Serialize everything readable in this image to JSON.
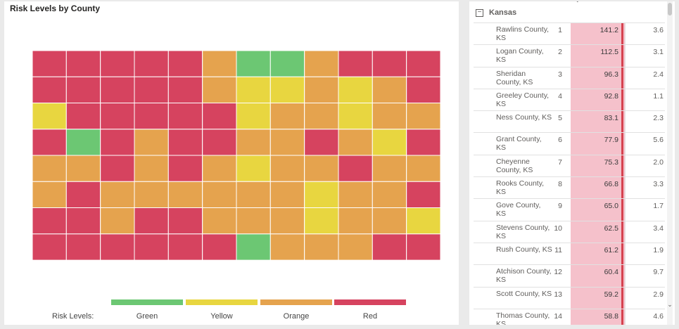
{
  "map": {
    "title": "Risk Levels by County",
    "legend_label": "Risk Levels:",
    "legend": [
      {
        "name": "Green",
        "color": "#6cc773"
      },
      {
        "name": "Yellow",
        "color": "#e8d640"
      },
      {
        "name": "Orange",
        "color": "#e5a34e"
      },
      {
        "name": "Red",
        "color": "#d6435f"
      }
    ]
  },
  "table": {
    "group_label": "Kansas",
    "collapse_symbol": "−",
    "top_caret": "⌄",
    "scroll_down": "⌄",
    "rows": [
      {
        "name": "Rawlins County, KS",
        "rank": "1",
        "value": "141.2",
        "extra": "3.6"
      },
      {
        "name": "Logan County, KS",
        "rank": "2",
        "value": "112.5",
        "extra": "3.1"
      },
      {
        "name": "Sheridan County, KS",
        "rank": "3",
        "value": "96.3",
        "extra": "2.4"
      },
      {
        "name": "Greeley County, KS",
        "rank": "4",
        "value": "92.8",
        "extra": "1.1"
      },
      {
        "name": "Ness County, KS",
        "rank": "5",
        "value": "83.1",
        "extra": "2.3"
      },
      {
        "name": "Grant County, KS",
        "rank": "6",
        "value": "77.9",
        "extra": "5.6"
      },
      {
        "name": "Cheyenne County, KS",
        "rank": "7",
        "value": "75.3",
        "extra": "2.0"
      },
      {
        "name": "Rooks County, KS",
        "rank": "8",
        "value": "66.8",
        "extra": "3.3"
      },
      {
        "name": "Gove County, KS",
        "rank": "9",
        "value": "65.0",
        "extra": "1.7"
      },
      {
        "name": "Stevens County, KS",
        "rank": "10",
        "value": "62.5",
        "extra": "3.4"
      },
      {
        "name": "Rush County, KS",
        "rank": "11",
        "value": "61.2",
        "extra": "1.9"
      },
      {
        "name": "Atchison County, KS",
        "rank": "12",
        "value": "60.4",
        "extra": "9.7"
      },
      {
        "name": "Scott County, KS",
        "rank": "13",
        "value": "59.2",
        "extra": "2.9"
      },
      {
        "name": "Thomas County, KS",
        "rank": "14",
        "value": "58.8",
        "extra": "4.6"
      }
    ]
  }
}
